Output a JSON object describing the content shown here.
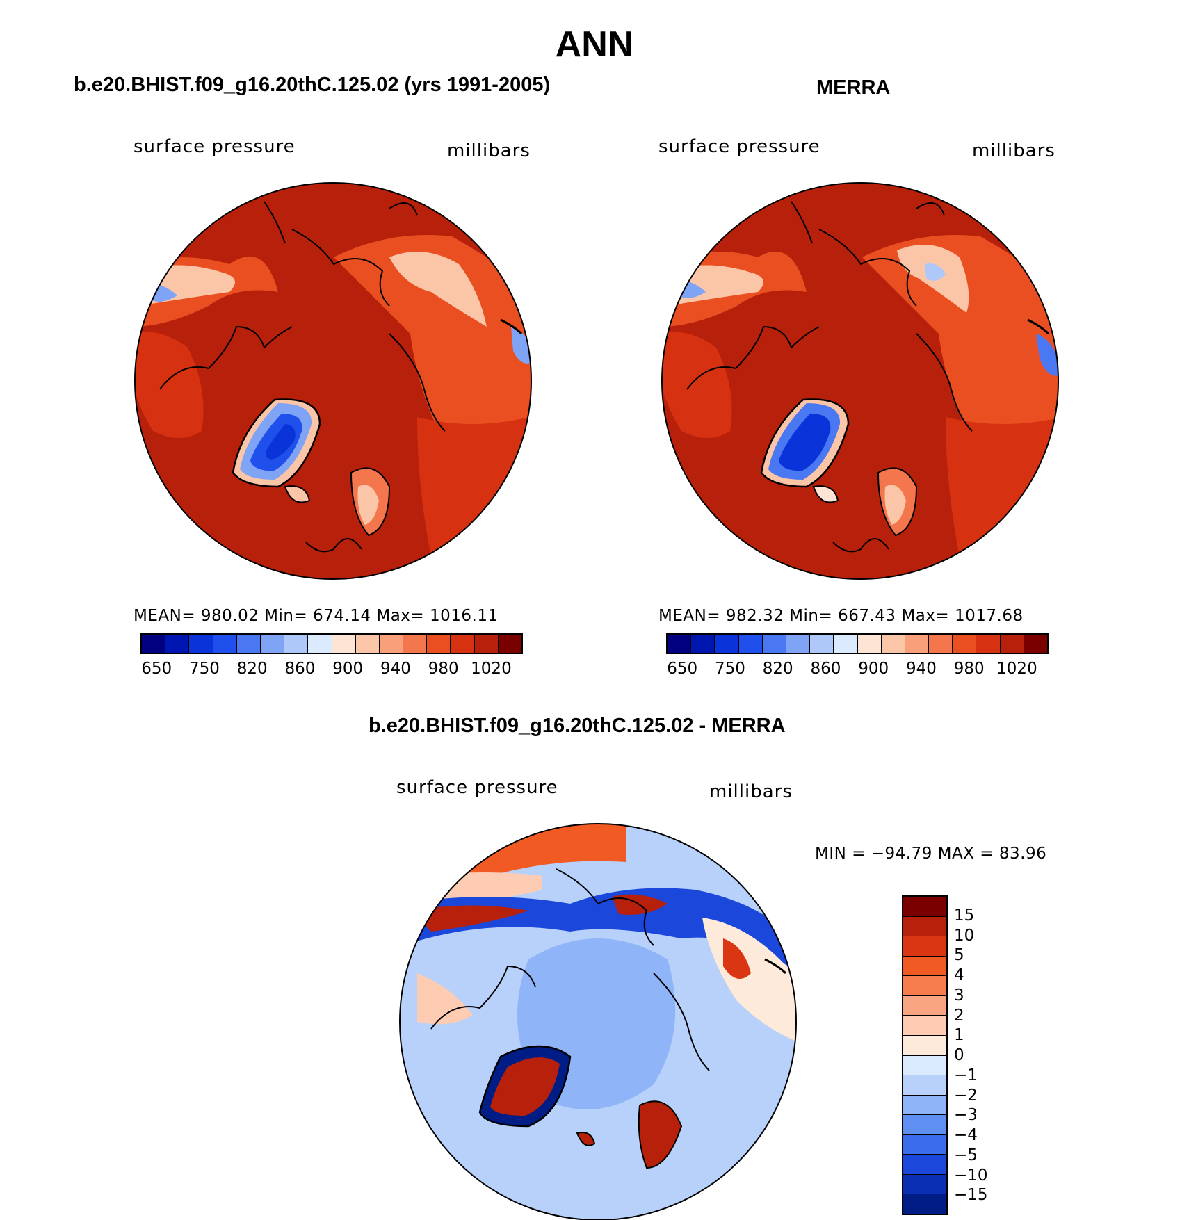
{
  "title": "ANN",
  "panels": [
    {
      "title": "b.e20.BHIST.f09_g16.20thC.125.02 (yrs 1991-2005)",
      "variable": "surface pressure",
      "units": "millibars",
      "stats": "MEAN= 980.02   Min= 674.14   Max= 1016.11"
    },
    {
      "title": "MERRA",
      "variable": "surface pressure",
      "units": "millibars",
      "stats": "MEAN= 982.32   Min= 667.43   Max= 1017.68"
    },
    {
      "title": "b.e20.BHIST.f09_g16.20thC.125.02 - MERRA",
      "variable": "surface pressure",
      "units": "millibars",
      "stats": "MIN = −94.79  MAX =   83.96"
    }
  ],
  "chart_data": {
    "type": "heatmap",
    "projection": "north polar stereographic",
    "abs_colorbar": {
      "colors": [
        "#000080",
        "#0016b0",
        "#0a34d9",
        "#2050eb",
        "#4a78f2",
        "#7fa4f5",
        "#aec8fa",
        "#dbeafd",
        "#fde4d4",
        "#fbc5a8",
        "#f7a07a",
        "#f3764d",
        "#ea4f22",
        "#d63212",
        "#b7200a",
        "#7a0000"
      ],
      "tick_labels": [
        "650",
        "750",
        "820",
        "860",
        "900",
        "940",
        "980",
        "1020"
      ]
    },
    "diff_colorbar": {
      "colors": [
        "#7a0000",
        "#b7200a",
        "#db3614",
        "#f25a24",
        "#f77d4e",
        "#faa582",
        "#fdccb2",
        "#fdeadb",
        "#d9ebfd",
        "#b7d1fb",
        "#8fb4f7",
        "#5f8ff1",
        "#3a6cec",
        "#1b47db",
        "#0a2fb3",
        "#001c85"
      ],
      "tick_labels": [
        "15",
        "10",
        "5",
        "4",
        "3",
        "2",
        "1",
        "0",
        "−1",
        "−2",
        "−3",
        "−4",
        "−5",
        "−10",
        "−15"
      ]
    }
  }
}
